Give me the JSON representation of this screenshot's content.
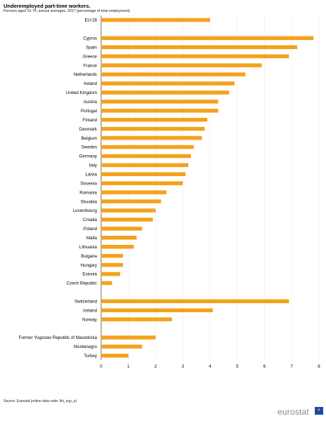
{
  "title": "Underemployed part-time workers.",
  "subtitle": "Persons aged 15-74, annual averages, 2017 (percentage of total employment)",
  "source": "Source:  Eurostat (online data code: lfsi_sup_a)",
  "brand": "eurostat",
  "colors": {
    "bar": "#f4a21c",
    "grid": "#d9d9d9"
  },
  "chart_data": {
    "type": "bar",
    "orientation": "horizontal",
    "categories": [
      "EU-28",
      "",
      "Cyprus",
      "Spain",
      "Greece",
      "France",
      "Netherlands",
      "Ireland",
      "United Kingdom",
      "Austria",
      "Portugal",
      "Finland",
      "Denmark",
      "Belgium",
      "Sweden",
      "Germany",
      "Italy",
      "Latvia",
      "Slovenia",
      "Romania",
      "Slovakia",
      "Luxembourg",
      "Croatia",
      "Poland",
      "Malta",
      "Lithuania",
      "Bulgaria",
      "Hungary",
      "Estonia",
      "Czech Republic",
      "",
      "Switzerland",
      "Iceland",
      "Norway",
      "",
      "Former Yugoslav Republic of Macedonia",
      "Montenegro",
      "Turkey"
    ],
    "values": [
      4.0,
      null,
      7.8,
      7.2,
      6.9,
      5.9,
      5.3,
      4.9,
      4.7,
      4.3,
      4.3,
      3.9,
      3.8,
      3.7,
      3.4,
      3.3,
      3.2,
      3.1,
      3.0,
      2.4,
      2.2,
      2.0,
      1.9,
      1.5,
      1.3,
      1.2,
      0.8,
      0.8,
      0.7,
      0.4,
      null,
      6.9,
      4.1,
      2.6,
      null,
      2.0,
      1.5,
      1.0
    ],
    "xlim": [
      0,
      8
    ],
    "xticks": [
      "0",
      "1",
      "2",
      "3",
      "4",
      "5",
      "6",
      "7",
      "8"
    ],
    "grid": true,
    "legend": "none"
  }
}
